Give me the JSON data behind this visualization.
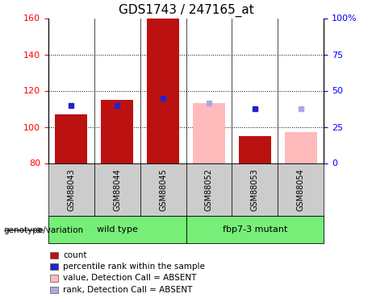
{
  "title": "GDS1743 / 247165_at",
  "samples": [
    "GSM88043",
    "GSM88044",
    "GSM88045",
    "GSM88052",
    "GSM88053",
    "GSM88054"
  ],
  "bar_bottom": 80,
  "ylim_left": [
    80,
    160
  ],
  "yticks_left": [
    80,
    100,
    120,
    140,
    160
  ],
  "yticks_right_vals": [
    80,
    100,
    120,
    140,
    160
  ],
  "yticks_right_labels": [
    "0",
    "25",
    "50",
    "75",
    "100%"
  ],
  "hgrid_vals": [
    100,
    120,
    140
  ],
  "count_values": [
    107,
    115,
    160,
    null,
    95,
    null
  ],
  "rank_values": [
    112,
    112,
    116,
    null,
    110,
    null
  ],
  "absent_value_bars": [
    null,
    null,
    null,
    113,
    null,
    97
  ],
  "absent_rank_values": [
    null,
    null,
    null,
    113,
    null,
    110
  ],
  "bar_color_present": "#BB1111",
  "bar_color_absent": "#FFBBBB",
  "dot_color_present": "#2222CC",
  "dot_color_absent": "#AAAADD",
  "bar_width": 0.35,
  "group1_label": "wild type",
  "group2_label": "fbp7-3 mutant",
  "group_color": "#77EE77",
  "sample_box_color": "#CCCCCC",
  "legend_items": [
    {
      "label": "count",
      "color": "#BB1111"
    },
    {
      "label": "percentile rank within the sample",
      "color": "#2222CC"
    },
    {
      "label": "value, Detection Call = ABSENT",
      "color": "#FFBBBB"
    },
    {
      "label": "rank, Detection Call = ABSENT",
      "color": "#AAAADD"
    }
  ],
  "title_fontsize": 11,
  "tick_fontsize": 8,
  "sample_fontsize": 7,
  "legend_fontsize": 7.5,
  "genotype_fontsize": 7.5,
  "group_fontsize": 8
}
